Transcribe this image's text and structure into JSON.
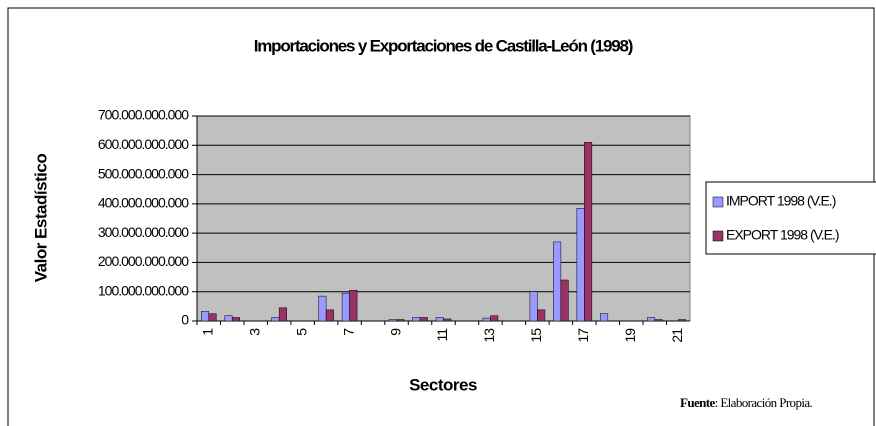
{
  "chart_data": {
    "type": "bar",
    "title": "Importaciones y Exportaciones de Castilla-León (1998)",
    "x_label": "Sectores",
    "y_label": "Valor Estadístico",
    "source_label": "Fuente",
    "source_text": ": Elaboración Propia.",
    "categories": [
      "1",
      null,
      "3",
      null,
      "5",
      null,
      "7",
      null,
      "9",
      null,
      "11",
      null,
      "13",
      null,
      "15",
      null,
      "17",
      null,
      "19",
      null,
      "21"
    ],
    "series": [
      {
        "name": "IMPORT 1998 (V.E.)",
        "color": "#9999ff",
        "values": [
          33000000000,
          18000000000,
          0,
          12000000000,
          0,
          85000000000,
          95000000000,
          0,
          5000000000,
          12000000000,
          12000000000,
          0,
          10000000000,
          0,
          100000000000,
          270000000000,
          385000000000,
          25000000000,
          0,
          12000000000,
          0
        ]
      },
      {
        "name": "EXPORT 1998 (V.E.)",
        "color": "#993366",
        "values": [
          25000000000,
          12000000000,
          0,
          45000000000,
          0,
          38000000000,
          105000000000,
          0,
          5000000000,
          12000000000,
          7000000000,
          0,
          18000000000,
          0,
          38000000000,
          140000000000,
          610000000000,
          0,
          0,
          5000000000,
          5000000000
        ]
      }
    ],
    "ylim": [
      0,
      700000000000
    ],
    "yticks": [
      0,
      {
        "value": 100000000000,
        "label": "100.000.000.000"
      },
      {
        "value": 200000000000,
        "label": "200.000.000.000"
      },
      {
        "value": 300000000000,
        "label": "300.000.000.000"
      },
      {
        "value": 400000000000,
        "label": "400.000.000.000"
      },
      {
        "value": 500000000000,
        "label": "500.000.000.000"
      },
      {
        "value": 600000000000,
        "label": "600.000.000.000"
      },
      {
        "value": 700000000000,
        "label": "700.000.000.000"
      }
    ],
    "grid": true,
    "legend": "right",
    "plot_background": "#c0c0c0"
  }
}
